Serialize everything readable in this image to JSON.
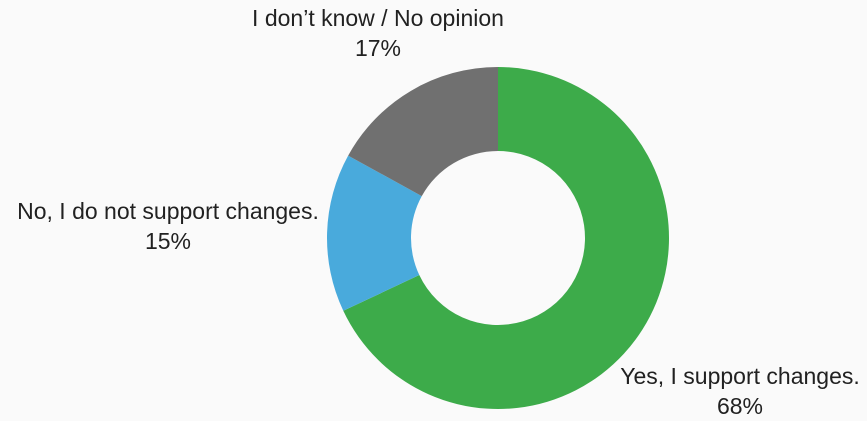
{
  "chart_data": {
    "type": "pie",
    "title": "",
    "donut": true,
    "slices": [
      {
        "label": "Yes, I support changes.",
        "value": 68,
        "value_text": "68%",
        "color": "#3dab4a"
      },
      {
        "label": "No, I do not support changes.",
        "value": 15,
        "value_text": "15%",
        "color": "#49aadc"
      },
      {
        "label": "I don’t know / No opinion",
        "value": 17,
        "value_text": "17%",
        "color": "#707070"
      }
    ],
    "start": "top",
    "direction": "clockwise",
    "legend": "none"
  }
}
